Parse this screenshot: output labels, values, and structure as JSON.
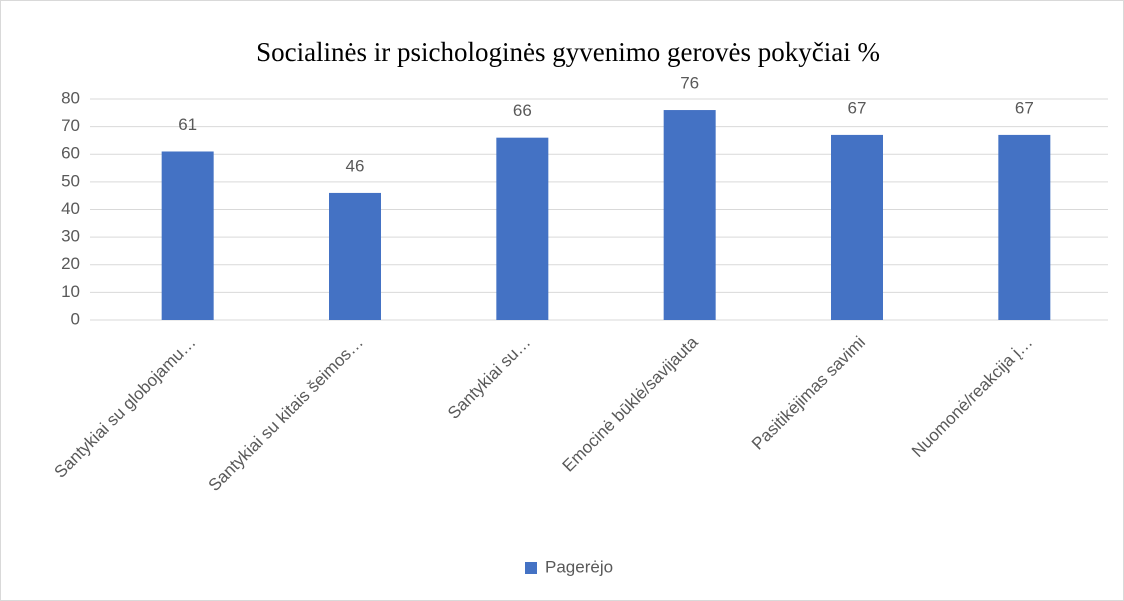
{
  "chart_data": {
    "type": "bar",
    "title": "Socialinės ir psichologinės gyvenimo gerovės pokyčiai %",
    "categories": [
      "Santykiai su globojamu…",
      "Santykiai su kitais šeimos…",
      "Santykiai su…",
      "Emocinė būklė/savijauta",
      "Pasitikėjimas savimi",
      "Nuomonė/reakcija į…"
    ],
    "series": [
      {
        "name": "Pagerėjo",
        "color": "#4472c4",
        "values": [
          61,
          46,
          66,
          76,
          67,
          67
        ]
      }
    ],
    "ylim": [
      0,
      80
    ],
    "yticks": [
      0,
      10,
      20,
      30,
      40,
      50,
      60,
      70,
      80
    ],
    "grid": true,
    "legend": "bottom"
  }
}
